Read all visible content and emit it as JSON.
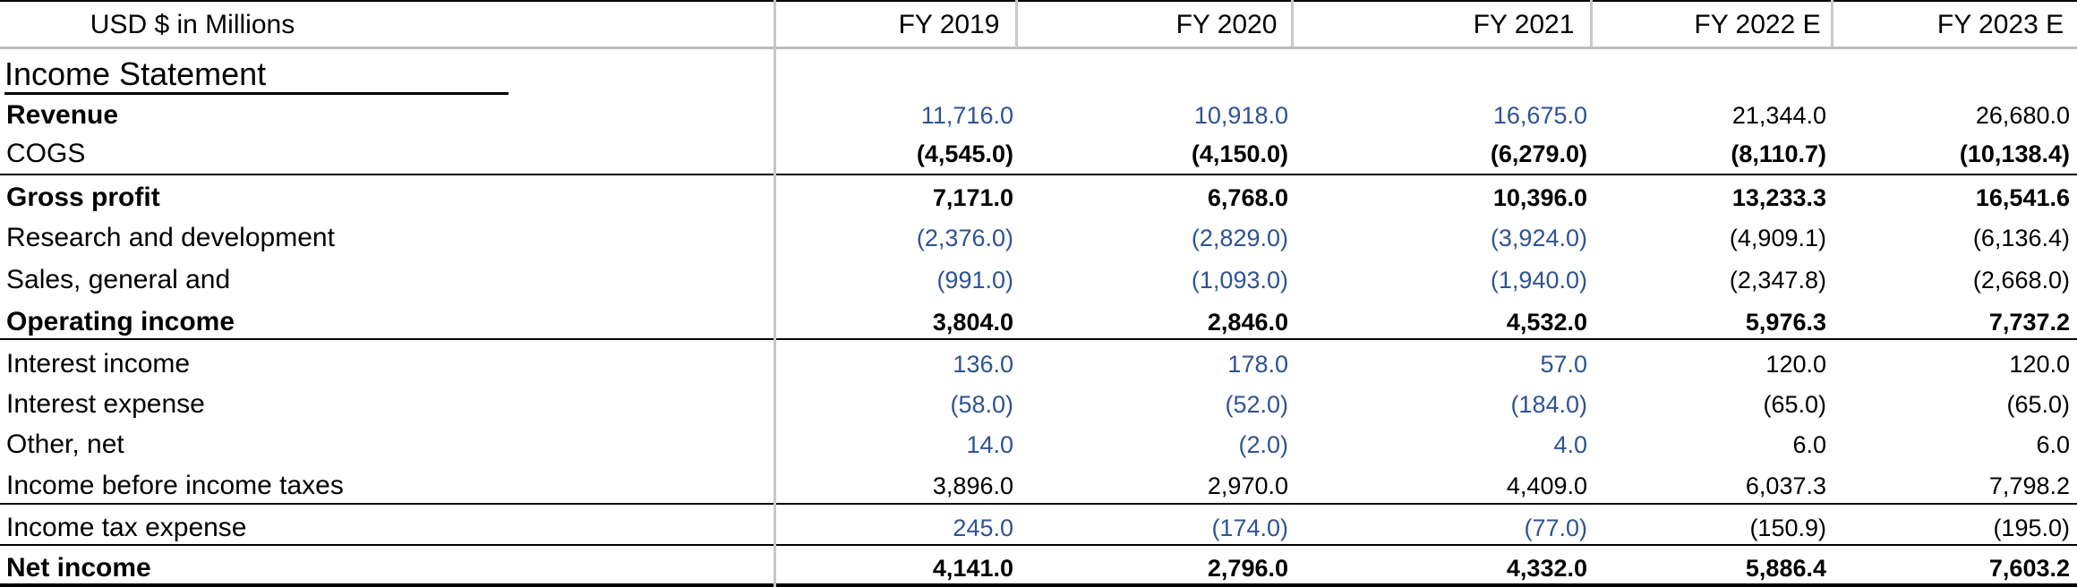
{
  "header": {
    "units_label": "USD $ in Millions",
    "years": [
      "FY 2019",
      "FY 2020",
      "FY 2021",
      "FY 2022 E",
      "FY 2023 E"
    ]
  },
  "section_title": "Income Statement",
  "rows": [
    {
      "label": "Revenue",
      "bold_label": true,
      "bold_values": false,
      "values": [
        "11,716.0",
        "10,918.0",
        "16,675.0",
        "21,344.0",
        "26,680.0"
      ],
      "blue": [
        true,
        true,
        true,
        false,
        false
      ]
    },
    {
      "label": "COGS",
      "bold_label": false,
      "bold_values": true,
      "values": [
        "(4,545.0)",
        "(4,150.0)",
        "(6,279.0)",
        "(8,110.7)",
        "(10,138.4)"
      ],
      "blue": [
        false,
        false,
        false,
        false,
        false
      ]
    },
    {
      "label": "Gross profit",
      "bold_label": true,
      "bold_values": true,
      "values": [
        "7,171.0",
        "6,768.0",
        "10,396.0",
        "13,233.3",
        "16,541.6"
      ],
      "blue": [
        false,
        false,
        false,
        false,
        false
      ]
    },
    {
      "label": "Research and development",
      "bold_label": false,
      "bold_values": false,
      "values": [
        "(2,376.0)",
        "(2,829.0)",
        "(3,924.0)",
        "(4,909.1)",
        "(6,136.4)"
      ],
      "blue": [
        true,
        true,
        true,
        false,
        false
      ]
    },
    {
      "label": "Sales, general and",
      "bold_label": false,
      "bold_values": false,
      "values": [
        "(991.0)",
        "(1,093.0)",
        "(1,940.0)",
        "(2,347.8)",
        "(2,668.0)"
      ],
      "blue": [
        true,
        true,
        true,
        false,
        false
      ]
    },
    {
      "label": "Operating income",
      "bold_label": true,
      "bold_values": true,
      "values": [
        "3,804.0",
        "2,846.0",
        "4,532.0",
        "5,976.3",
        "7,737.2"
      ],
      "blue": [
        false,
        false,
        false,
        false,
        false
      ]
    },
    {
      "label": "Interest income",
      "bold_label": false,
      "bold_values": false,
      "values": [
        "136.0",
        "178.0",
        "57.0",
        "120.0",
        "120.0"
      ],
      "blue": [
        true,
        true,
        true,
        false,
        false
      ]
    },
    {
      "label": "Interest expense",
      "bold_label": false,
      "bold_values": false,
      "values": [
        "(58.0)",
        "(52.0)",
        "(184.0)",
        "(65.0)",
        "(65.0)"
      ],
      "blue": [
        true,
        true,
        true,
        false,
        false
      ]
    },
    {
      "label": "Other, net",
      "bold_label": false,
      "bold_values": false,
      "values": [
        "14.0",
        "(2.0)",
        "4.0",
        "6.0",
        "6.0"
      ],
      "blue": [
        true,
        true,
        true,
        false,
        false
      ]
    },
    {
      "label": "Income before income taxes",
      "bold_label": false,
      "bold_values": false,
      "values": [
        "3,896.0",
        "2,970.0",
        "4,409.0",
        "6,037.3",
        "7,798.2"
      ],
      "blue": [
        false,
        false,
        false,
        false,
        false
      ]
    },
    {
      "label": "Income tax expense",
      "bold_label": false,
      "bold_values": false,
      "values": [
        "245.0",
        "(174.0)",
        "(77.0)",
        "(150.9)",
        "(195.0)"
      ],
      "blue": [
        true,
        true,
        true,
        false,
        false
      ]
    },
    {
      "label": "Net income",
      "bold_label": true,
      "bold_values": true,
      "values": [
        "4,141.0",
        "2,796.0",
        "4,332.0",
        "5,886.4",
        "7,603.2"
      ],
      "blue": [
        false,
        false,
        false,
        false,
        false
      ]
    }
  ]
}
